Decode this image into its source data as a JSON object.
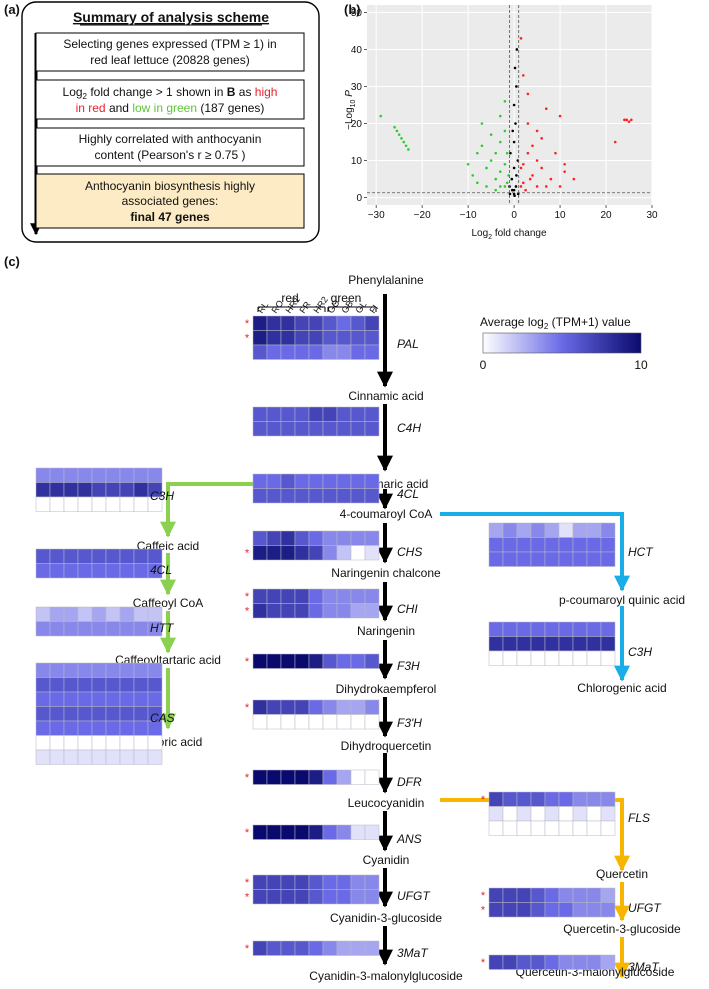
{
  "panel_a": {
    "label": "(a)",
    "title": "Summary of analysis scheme",
    "step1": [
      "Selecting genes expressed (TPM ≥ 1) in",
      "red leaf lettuce (20828 genes)"
    ],
    "step2": {
      "l1a": "Log",
      "l1b": "2",
      "l1c": " fold change > 1 shown in ",
      "l1d": "B",
      "l1e": " as ",
      "l1f": "high",
      "l2a": "in red",
      "l2b": " and ",
      "l2c": "low in green",
      "l2d": " (187 genes)"
    },
    "step3": [
      "Highly correlated with anthocyanin",
      "content (Pearson's r ≥ 0.75 )"
    ],
    "step4": [
      "Anthocyanin biosynthesis highly",
      "associated genes:",
      "final 47 genes"
    ]
  },
  "panel_b": {
    "label": "(b)",
    "ylabel_a": "−Log",
    "ylabel_b": "10",
    "ylabel_c": " P",
    "xlabel_a": "Log",
    "xlabel_b": "2",
    "xlabel_c": " fold change",
    "xticks": [
      "−30",
      "−20",
      "−10",
      "0",
      "10",
      "20",
      "30"
    ],
    "yticks": [
      "0",
      "10",
      "20",
      "30",
      "40",
      "50"
    ]
  },
  "chart_data": {
    "type": "scatter",
    "xlim": [
      -32,
      30
    ],
    "ylim": [
      -2,
      52
    ],
    "xticks": [
      -30,
      -20,
      -10,
      0,
      10,
      20,
      30
    ],
    "yticks": [
      0,
      10,
      20,
      30,
      40,
      50
    ],
    "threshold_lines": {
      "x": [
        -1,
        1
      ],
      "y": 1.3
    },
    "series": [
      {
        "color": "#2ecc2e",
        "points": [
          [
            -26,
            19
          ],
          [
            -25.5,
            18
          ],
          [
            -25,
            17
          ],
          [
            -24.5,
            16
          ],
          [
            -24,
            15
          ],
          [
            -23.5,
            14
          ],
          [
            -23,
            13
          ],
          [
            -29,
            22
          ],
          [
            -10,
            9
          ],
          [
            -9,
            6
          ],
          [
            -8,
            12
          ],
          [
            -7,
            14
          ],
          [
            -6,
            8
          ],
          [
            -5,
            10
          ],
          [
            -5,
            17
          ],
          [
            -4,
            5
          ],
          [
            -4,
            12
          ],
          [
            -3,
            7
          ],
          [
            -3,
            15
          ],
          [
            -3,
            22
          ],
          [
            -2,
            9
          ],
          [
            -2,
            18
          ],
          [
            -2,
            26
          ],
          [
            -1.5,
            4
          ],
          [
            -1.5,
            12
          ],
          [
            -1.2,
            6
          ],
          [
            -8,
            4
          ],
          [
            -6,
            3
          ],
          [
            -4,
            2
          ],
          [
            -2,
            3
          ],
          [
            -7,
            20
          ],
          [
            -3,
            3
          ]
        ]
      },
      {
        "color": "#000000",
        "points": [
          [
            -1,
            3
          ],
          [
            -0.5,
            5
          ],
          [
            0,
            8
          ],
          [
            0.5,
            6
          ],
          [
            0.8,
            10
          ],
          [
            -0.8,
            12
          ],
          [
            0,
            15
          ],
          [
            0.3,
            20
          ],
          [
            -0.3,
            18
          ],
          [
            0,
            25
          ],
          [
            0.5,
            30
          ],
          [
            0.2,
            35
          ],
          [
            0.6,
            40
          ],
          [
            0,
            2
          ],
          [
            0.9,
            1
          ],
          [
            -0.9,
            1
          ],
          [
            0.4,
            3
          ],
          [
            -0.4,
            2
          ],
          [
            0,
            1
          ],
          [
            0.1,
            0.5
          ]
        ]
      },
      {
        "color": "#ff2222",
        "points": [
          [
            1.5,
            43
          ],
          [
            2,
            33
          ],
          [
            2,
            4
          ],
          [
            2,
            9
          ],
          [
            3,
            12
          ],
          [
            3,
            20
          ],
          [
            3,
            28
          ],
          [
            4,
            6
          ],
          [
            4,
            14
          ],
          [
            5,
            18
          ],
          [
            5,
            10
          ],
          [
            6,
            8
          ],
          [
            6,
            16
          ],
          [
            7,
            24
          ],
          [
            8,
            5
          ],
          [
            9,
            12
          ],
          [
            10,
            3
          ],
          [
            11,
            7
          ],
          [
            2.5,
            2
          ],
          [
            1.5,
            3
          ],
          [
            1.5,
            8
          ],
          [
            3.5,
            5
          ],
          [
            5,
            3
          ],
          [
            7,
            3
          ],
          [
            10,
            22
          ],
          [
            11,
            9
          ],
          [
            13,
            5
          ],
          [
            24,
            21
          ],
          [
            24.5,
            21
          ],
          [
            25,
            20.5
          ],
          [
            25.5,
            21
          ],
          [
            22,
            15
          ]
        ]
      }
    ]
  },
  "panel_c": {
    "label": "(c)",
    "header_red": "red",
    "header_green": "green",
    "columns": [
      "RL",
      "RO",
      "HR1",
      "FR",
      "HR2",
      "GO",
      "GB",
      "GL",
      "FI"
    ],
    "legend_title_a": "Average log",
    "legend_title_b": "2",
    "legend_title_c": " (TPM+1) value",
    "legend_min": "0",
    "legend_max": "10",
    "compounds": {
      "phenylalanine": "Phenylalanine",
      "cinnamic": "Cinnamic acid",
      "pcoumaric": "p-coumaric acid",
      "coumaroyl_coa": "4-coumaroyl CoA",
      "naringenin_chalcone": "Naringenin chalcone",
      "naringenin": "Naringenin",
      "dihydrokaempferol": "Dihydrokaempferol",
      "dihydroquercetin": "Dihydroquercetin",
      "leucocyanidin": "Leucocyanidin",
      "cyanidin": "Cyanidin",
      "cyanidin3g": "Cyanidin-3-glucoside",
      "cyanidin3mg": "Cyanidin-3-malonylglucoside",
      "caffeic": "Caffeic acid",
      "caffeoyl_coa": "Caffeoyl CoA",
      "caffeoyltartaric": "Caffeoyltartaric acid",
      "chicoric": "Chicoric acid",
      "pcoumaroyl_quinic": "p-coumaroyl quinic acid",
      "chlorogenic": "Chlorogenic acid",
      "quercetin": "Quercetin",
      "quercetin3g": "Quercetin-3-glucoside",
      "quercetin3mg": "Quercetin-3-malonylglucoside"
    },
    "heatmaps": [
      {
        "gene": "PAL",
        "stars": [
          true,
          true,
          false
        ],
        "rows": [
          [
            9,
            8,
            8,
            7,
            7,
            6,
            5,
            6,
            7
          ],
          [
            9,
            8,
            8,
            7,
            7,
            6,
            6,
            6,
            6
          ],
          [
            6,
            5,
            5,
            5,
            5,
            4,
            4,
            5,
            5
          ]
        ]
      },
      {
        "gene": "C4H",
        "stars": [
          false,
          false
        ],
        "rows": [
          [
            6,
            6,
            6,
            6,
            7,
            7,
            6,
            6,
            6
          ],
          [
            6,
            6,
            6,
            6,
            6,
            6,
            6,
            6,
            6
          ]
        ]
      },
      {
        "gene": "4CL",
        "stars": [
          false,
          false
        ],
        "rows": [
          [
            5,
            5,
            6,
            5,
            5,
            5,
            5,
            5,
            5
          ],
          [
            6,
            6,
            6,
            6,
            6,
            6,
            6,
            6,
            6
          ]
        ]
      },
      {
        "gene": "CHS",
        "stars": [
          false,
          true
        ],
        "rows": [
          [
            6,
            7,
            8,
            6,
            5,
            4,
            4,
            4,
            4
          ],
          [
            9,
            9,
            9,
            8,
            7,
            4,
            2,
            0,
            1
          ]
        ]
      },
      {
        "gene": "CHI",
        "stars": [
          true,
          true
        ],
        "rows": [
          [
            7,
            7,
            7,
            7,
            5,
            4,
            4,
            4,
            4
          ],
          [
            8,
            7,
            7,
            7,
            5,
            4,
            4,
            3,
            3
          ]
        ]
      },
      {
        "gene": "F3H",
        "stars": [
          true
        ],
        "rows": [
          [
            10,
            10,
            10,
            10,
            9,
            6,
            5,
            5,
            6
          ]
        ]
      },
      {
        "gene": "F3'H",
        "stars": [
          true,
          false
        ],
        "rows": [
          [
            8,
            7,
            7,
            7,
            5,
            4,
            3,
            3,
            4
          ],
          [
            0,
            0,
            0,
            0,
            0,
            0,
            0,
            0,
            0
          ]
        ]
      },
      {
        "gene": "DFR",
        "stars": [
          true
        ],
        "rows": [
          [
            10,
            10,
            10,
            10,
            9,
            5,
            3,
            0,
            0
          ]
        ]
      },
      {
        "gene": "ANS",
        "stars": [
          true
        ],
        "rows": [
          [
            10,
            10,
            10,
            10,
            9,
            5,
            4,
            1,
            1
          ]
        ]
      },
      {
        "gene": "UFGT",
        "stars": [
          true,
          true
        ],
        "rows": [
          [
            7,
            7,
            7,
            7,
            6,
            5,
            5,
            4,
            4
          ],
          [
            7,
            7,
            7,
            7,
            6,
            5,
            5,
            4,
            4
          ]
        ]
      },
      {
        "gene": "3MaT",
        "stars": [
          true
        ],
        "rows": [
          [
            7,
            6,
            6,
            6,
            5,
            4,
            3,
            3,
            3
          ]
        ]
      },
      {
        "gene": "C3H",
        "stars": [
          false,
          false,
          false
        ],
        "rows": [
          [
            4,
            4,
            4,
            4,
            4,
            4,
            4,
            4,
            4
          ],
          [
            8,
            8,
            8,
            8,
            7,
            7,
            7,
            8,
            7
          ],
          [
            0,
            0,
            0,
            0,
            0,
            0,
            0,
            0,
            0
          ]
        ]
      },
      {
        "gene": "4CL",
        "stars": [
          false,
          false
        ],
        "rows": [
          [
            6,
            6,
            6,
            6,
            6,
            6,
            6,
            6,
            6
          ],
          [
            5,
            5,
            5,
            5,
            5,
            5,
            5,
            5,
            5
          ]
        ]
      },
      {
        "gene": "HTT",
        "stars": [
          false,
          false
        ],
        "rows": [
          [
            2,
            3,
            3,
            2,
            3,
            2,
            3,
            2,
            2
          ],
          [
            4,
            4,
            4,
            4,
            4,
            4,
            4,
            4,
            4
          ]
        ]
      },
      {
        "gene": "CAS",
        "stars": [
          false,
          false,
          false,
          false,
          false,
          false,
          false
        ],
        "rows": [
          [
            4,
            4,
            4,
            4,
            4,
            4,
            4,
            4,
            4
          ],
          [
            6,
            6,
            6,
            6,
            6,
            6,
            6,
            6,
            6
          ],
          [
            5,
            5,
            5,
            5,
            5,
            5,
            5,
            5,
            5
          ],
          [
            6,
            6,
            6,
            6,
            6,
            6,
            6,
            6,
            6
          ],
          [
            5,
            5,
            5,
            5,
            5,
            5,
            5,
            5,
            5
          ],
          [
            0,
            0,
            0,
            0,
            0,
            0,
            0,
            0,
            0
          ],
          [
            1,
            1,
            1,
            1,
            1,
            1,
            1,
            1,
            1
          ]
        ]
      },
      {
        "gene": "HCT",
        "stars": [
          false,
          false,
          false
        ],
        "rows": [
          [
            3,
            4,
            3,
            4,
            3,
            1,
            3,
            3,
            4
          ],
          [
            5,
            5,
            5,
            5,
            5,
            5,
            5,
            5,
            5
          ],
          [
            5,
            5,
            5,
            5,
            5,
            5,
            5,
            5,
            5
          ]
        ]
      },
      {
        "gene": "C3H",
        "stars": [
          false,
          false,
          false
        ],
        "rows": [
          [
            5,
            5,
            5,
            5,
            5,
            5,
            5,
            5,
            5
          ],
          [
            8,
            8,
            8,
            8,
            8,
            8,
            8,
            8,
            8
          ],
          [
            0,
            0,
            0,
            0,
            0,
            0,
            0,
            0,
            0
          ]
        ]
      },
      {
        "gene": "FLS",
        "stars": [
          true,
          false,
          false
        ],
        "rows": [
          [
            7,
            6,
            6,
            6,
            5,
            5,
            4,
            4,
            4
          ],
          [
            1,
            0,
            1,
            0,
            1,
            0,
            1,
            0,
            1
          ],
          [
            0,
            0,
            0,
            0,
            0,
            0,
            0,
            0,
            0
          ]
        ]
      },
      {
        "gene": "UFGT",
        "stars": [
          true,
          true
        ],
        "rows": [
          [
            7,
            7,
            7,
            6,
            5,
            4,
            4,
            4,
            3
          ],
          [
            7,
            7,
            7,
            6,
            5,
            5,
            4,
            4,
            4
          ]
        ]
      },
      {
        "gene": "3MaT",
        "stars": [
          true
        ],
        "rows": [
          [
            7,
            7,
            6,
            6,
            5,
            4,
            4,
            4,
            3
          ]
        ]
      }
    ]
  }
}
